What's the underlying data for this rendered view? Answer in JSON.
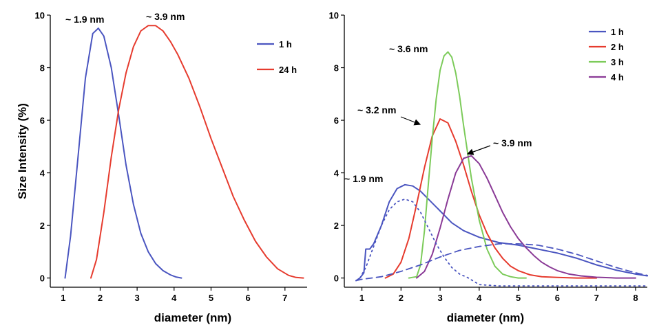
{
  "chart_data": [
    {
      "type": "line",
      "ylabel": "Size Intensity (%)",
      "xlabel": "diameter (nm)",
      "xlim": [
        0.65,
        7.6
      ],
      "ylim": [
        -0.35,
        10.0
      ],
      "xticks": [
        1,
        2,
        3,
        4,
        5,
        6,
        7
      ],
      "yticks": [
        0,
        2,
        4,
        6,
        8,
        10
      ],
      "legend_position": "top-right",
      "series": [
        {
          "name": "1 h",
          "color": "#4a55c0",
          "style": "solid",
          "x": [
            1.05,
            1.2,
            1.4,
            1.6,
            1.8,
            1.95,
            2.1,
            2.3,
            2.5,
            2.7,
            2.9,
            3.1,
            3.3,
            3.5,
            3.7,
            3.9,
            4.05,
            4.2
          ],
          "y": [
            0.0,
            1.6,
            4.6,
            7.6,
            9.3,
            9.5,
            9.2,
            8.0,
            6.2,
            4.3,
            2.8,
            1.7,
            1.0,
            0.55,
            0.28,
            0.12,
            0.04,
            0.0
          ]
        },
        {
          "name": "24 h",
          "color": "#e63b2e",
          "style": "solid",
          "x": [
            1.75,
            1.9,
            2.1,
            2.3,
            2.5,
            2.7,
            2.9,
            3.1,
            3.3,
            3.5,
            3.7,
            3.9,
            4.1,
            4.4,
            4.7,
            5.0,
            5.3,
            5.6,
            5.9,
            6.2,
            6.5,
            6.8,
            7.1,
            7.3,
            7.5
          ],
          "y": [
            0.0,
            0.7,
            2.5,
            4.6,
            6.4,
            7.8,
            8.8,
            9.4,
            9.6,
            9.6,
            9.4,
            9.0,
            8.5,
            7.6,
            6.5,
            5.3,
            4.2,
            3.1,
            2.2,
            1.4,
            0.8,
            0.35,
            0.1,
            0.02,
            0.0
          ]
        }
      ],
      "annotations": [
        {
          "text": "~ 1.9 nm",
          "x": 1.9,
          "y": 9.5
        },
        {
          "text": "~ 3.9 nm",
          "x": 3.9,
          "y": 9.6
        }
      ]
    },
    {
      "type": "line",
      "ylabel": "",
      "xlabel": "diameter (nm)",
      "xlim": [
        0.55,
        8.3
      ],
      "ylim": [
        -0.35,
        10.0
      ],
      "xticks": [
        1,
        2,
        3,
        4,
        5,
        6,
        7,
        8
      ],
      "yticks": [
        0,
        2,
        4,
        6,
        8,
        10
      ],
      "legend_position": "top-right",
      "series": [
        {
          "name": "1 h",
          "color": "#4a55c0",
          "style": "solid",
          "x": [
            0.85,
            0.95,
            1.05,
            1.1,
            1.2,
            1.3,
            1.5,
            1.7,
            1.9,
            2.1,
            2.3,
            2.5,
            2.7,
            3.0,
            3.3,
            3.6,
            4.0,
            4.5,
            5.0,
            5.5,
            6.0,
            6.5,
            7.0,
            7.5,
            8.0,
            8.3
          ],
          "y": [
            -0.1,
            0.0,
            0.2,
            1.1,
            1.1,
            1.3,
            2.0,
            2.9,
            3.4,
            3.55,
            3.5,
            3.3,
            3.0,
            2.55,
            2.1,
            1.8,
            1.55,
            1.35,
            1.25,
            1.1,
            0.95,
            0.75,
            0.5,
            0.3,
            0.15,
            0.08
          ]
        },
        {
          "name": "2 h",
          "color": "#e63b2e",
          "style": "solid",
          "x": [
            1.6,
            1.8,
            2.0,
            2.2,
            2.4,
            2.6,
            2.8,
            3.0,
            3.2,
            3.4,
            3.6,
            3.8,
            4.0,
            4.2,
            4.4,
            4.6,
            4.8,
            5.0,
            5.3,
            5.6,
            6.0,
            6.5,
            7.0
          ],
          "y": [
            0.0,
            0.15,
            0.6,
            1.5,
            2.8,
            4.2,
            5.4,
            6.05,
            5.9,
            5.2,
            4.3,
            3.3,
            2.4,
            1.7,
            1.15,
            0.75,
            0.45,
            0.28,
            0.12,
            0.05,
            0.02,
            0.0,
            0.0
          ]
        },
        {
          "name": "3 h",
          "color": "#7ccb5a",
          "style": "solid",
          "x": [
            2.2,
            2.4,
            2.5,
            2.6,
            2.7,
            2.8,
            2.9,
            3.0,
            3.1,
            3.2,
            3.3,
            3.4,
            3.5,
            3.6,
            3.8,
            4.0,
            4.2,
            4.4,
            4.6,
            4.8,
            5.0,
            5.2
          ],
          "y": [
            0.0,
            0.05,
            0.5,
            1.8,
            3.6,
            5.3,
            6.8,
            7.9,
            8.45,
            8.6,
            8.4,
            7.8,
            6.9,
            5.8,
            3.8,
            2.2,
            1.1,
            0.45,
            0.15,
            0.05,
            0.0,
            0.0
          ]
        },
        {
          "name": "4 h",
          "color": "#8a3a96",
          "style": "solid",
          "x": [
            2.4,
            2.6,
            2.8,
            3.0,
            3.2,
            3.4,
            3.6,
            3.8,
            4.0,
            4.2,
            4.4,
            4.6,
            4.8,
            5.0,
            5.2,
            5.4,
            5.6,
            5.8,
            6.0,
            6.3,
            6.6,
            7.0,
            7.5,
            8.0
          ],
          "y": [
            0.0,
            0.25,
            0.9,
            1.9,
            3.0,
            4.0,
            4.55,
            4.65,
            4.35,
            3.8,
            3.15,
            2.5,
            1.95,
            1.5,
            1.15,
            0.85,
            0.6,
            0.42,
            0.28,
            0.15,
            0.08,
            0.03,
            0.0,
            0.0
          ]
        },
        {
          "name": "",
          "color": "#4a55c0",
          "style": "dotted",
          "x": [
            0.95,
            1.1,
            1.3,
            1.5,
            1.7,
            1.9,
            2.1,
            2.3,
            2.5,
            2.7,
            2.9,
            3.1,
            3.3,
            3.5,
            3.7,
            4.0,
            4.5,
            5.0,
            6.0,
            7.0,
            8.0,
            8.3
          ],
          "y": [
            0.0,
            0.4,
            1.2,
            2.0,
            2.6,
            2.9,
            3.0,
            2.9,
            2.5,
            1.9,
            1.3,
            0.8,
            0.4,
            0.15,
            0.02,
            -0.25,
            -0.3,
            -0.3,
            -0.3,
            -0.3,
            -0.3,
            -0.3
          ]
        },
        {
          "name": "",
          "color": "#4a55c0",
          "style": "dashed",
          "x": [
            0.85,
            1.0,
            1.5,
            2.0,
            2.5,
            3.0,
            3.5,
            4.0,
            4.5,
            5.0,
            5.5,
            6.0,
            6.5,
            7.0,
            7.5,
            8.0,
            8.3
          ],
          "y": [
            -0.1,
            -0.05,
            0.05,
            0.25,
            0.5,
            0.8,
            1.05,
            1.2,
            1.3,
            1.3,
            1.25,
            1.1,
            0.9,
            0.65,
            0.4,
            0.2,
            0.1
          ]
        }
      ],
      "annotations": [
        {
          "text": "~ 3.6 nm",
          "x": 3.15,
          "y": 8.6
        },
        {
          "text": "~ 3.2 nm",
          "x": 3.0,
          "y": 6.05
        },
        {
          "text": "~ 3.9 nm",
          "x": 3.7,
          "y": 4.65
        },
        {
          "text": "~ 1.9 nm",
          "x": 2.1,
          "y": 3.55
        }
      ]
    }
  ]
}
